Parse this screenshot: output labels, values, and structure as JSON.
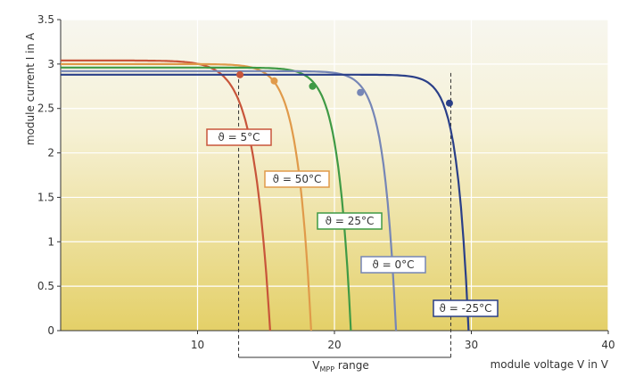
{
  "chart_data": {
    "type": "line",
    "xlabel": "module voltage V in V",
    "ylabel": "module current I in A",
    "xlim": [
      0,
      40
    ],
    "ylim": [
      0,
      3.5
    ],
    "x_ticks": [
      "10",
      "20",
      "30",
      "40"
    ],
    "y_ticks": [
      "0",
      "0.5",
      "1",
      "1.5",
      "2",
      "2.5",
      "3",
      "3.5"
    ],
    "grid": true,
    "vmpp_range": {
      "label": "V",
      "subscript": "MPP",
      "suffix": " range",
      "from": 13,
      "to": 28.5
    },
    "series": [
      {
        "label": "ϑ = 5°C",
        "color": "#c8553a",
        "isc": 3.04,
        "voc": 15.3,
        "knee": 1.2,
        "mpp": [
          13.1,
          2.88
        ]
      },
      {
        "label": "ϑ = 50°C",
        "color": "#e09a4a",
        "isc": 3.0,
        "voc": 18.3,
        "knee": 1.0,
        "mpp": [
          15.6,
          2.81
        ]
      },
      {
        "label": "ϑ = 25°C",
        "color": "#3f9a45",
        "isc": 2.96,
        "voc": 21.2,
        "knee": 0.95,
        "mpp": [
          18.4,
          2.75
        ]
      },
      {
        "label": "ϑ = 0°C",
        "color": "#7686b6",
        "isc": 2.92,
        "voc": 24.5,
        "knee": 0.9,
        "mpp": [
          21.9,
          2.68
        ]
      },
      {
        "label": "ϑ = -25°C",
        "color": "#2a3f88",
        "isc": 2.88,
        "voc": 29.8,
        "knee": 0.85,
        "mpp": [
          28.4,
          2.56
        ]
      }
    ]
  }
}
